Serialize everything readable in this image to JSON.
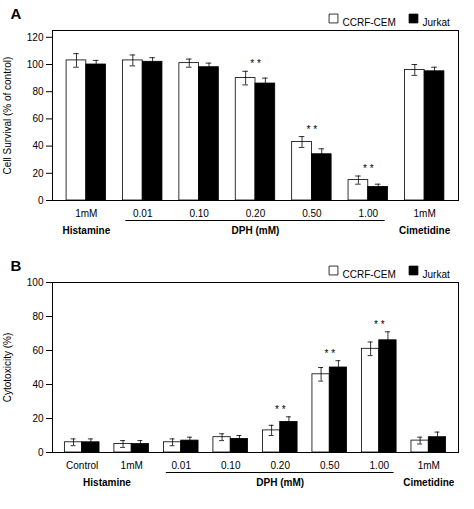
{
  "chart_data": [
    {
      "type": "bar",
      "title": "A",
      "categories": [
        "1mM",
        "0.01",
        "0.10",
        "0.20",
        "0.50",
        "1.00",
        "1mM"
      ],
      "series": [
        {
          "name": "CCRF-CEM",
          "color": "white",
          "values": [
            103,
            103,
            101,
            90,
            43,
            15,
            96
          ],
          "errors": [
            5,
            4,
            3,
            5,
            4,
            3,
            4
          ]
        },
        {
          "name": "Jurkat",
          "color": "black",
          "values": [
            100,
            102,
            98,
            86,
            34,
            10,
            95
          ],
          "errors": [
            3,
            3,
            3,
            4,
            4,
            2,
            3
          ]
        }
      ],
      "ylabel": "Cell Survival (% of control)",
      "ylim": [
        0,
        125
      ],
      "yticks": [
        0,
        20,
        40,
        60,
        80,
        100,
        120
      ],
      "legend": "upper right",
      "grid": false,
      "annotations": [
        {
          "text": "* *",
          "index": 3
        },
        {
          "text": "* *",
          "index": 4
        },
        {
          "text": "* *",
          "index": 5
        }
      ],
      "group_labels": [
        {
          "text": "Histamine",
          "indices": [
            0
          ]
        },
        {
          "text": "DPH (mM)",
          "indices": [
            1,
            2,
            3,
            4,
            5
          ],
          "bracket": true
        },
        {
          "text": "Cimetidine",
          "indices": [
            6
          ]
        }
      ]
    },
    {
      "type": "bar",
      "title": "B",
      "categories": [
        "Control",
        "1mM",
        "0.01",
        "0.10",
        "0.20",
        "0.50",
        "1.00",
        "1mM"
      ],
      "series": [
        {
          "name": "CCRF-CEM",
          "color": "white",
          "values": [
            6,
            5,
            6,
            9,
            13,
            46,
            61,
            7
          ],
          "errors": [
            2,
            2,
            2,
            2,
            3,
            4,
            4,
            2
          ]
        },
        {
          "name": "Jurkat",
          "color": "black",
          "values": [
            6,
            5,
            7,
            8,
            18,
            50,
            66,
            9
          ],
          "errors": [
            2,
            2,
            2,
            2,
            3,
            4,
            5,
            3
          ]
        }
      ],
      "ylabel": "Cytotoxicity (%)",
      "ylim": [
        0,
        100
      ],
      "yticks": [
        0,
        20,
        40,
        60,
        80,
        100
      ],
      "legend": "upper right",
      "grid": false,
      "annotations": [
        {
          "text": "* *",
          "index": 4
        },
        {
          "text": "* *",
          "index": 5
        },
        {
          "text": "* *",
          "index": 6
        }
      ],
      "group_labels": [
        {
          "text": "Histamine",
          "indices": [
            0,
            1
          ]
        },
        {
          "text": "DPH (mM)",
          "indices": [
            2,
            3,
            4,
            5,
            6
          ],
          "bracket": true
        },
        {
          "text": "Cimetidine",
          "indices": [
            7
          ]
        }
      ]
    }
  ]
}
